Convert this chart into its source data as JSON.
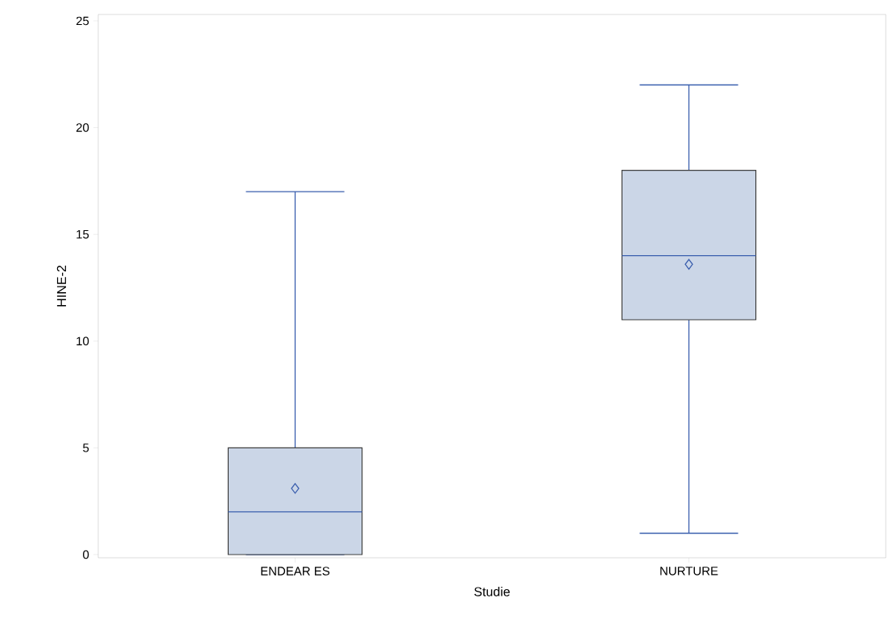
{
  "chart_data": {
    "type": "box",
    "categories": [
      "ENDEAR ES",
      "NURTURE"
    ],
    "boxes": [
      {
        "low": 0,
        "q1": 0,
        "median": 2,
        "q3": 5,
        "high": 17,
        "mean": 3.1
      },
      {
        "low": 1,
        "q1": 11,
        "median": 14,
        "q3": 18,
        "high": 22,
        "mean": 13.6
      }
    ],
    "color": "#cbd6e7",
    "marker": "diamond",
    "xlabel": "Studie",
    "ylabel": "HINE-2",
    "ylim": [
      -0.15,
      25.3
    ],
    "yticks": [
      0,
      5,
      10,
      15,
      20,
      25
    ],
    "grid": false
  }
}
